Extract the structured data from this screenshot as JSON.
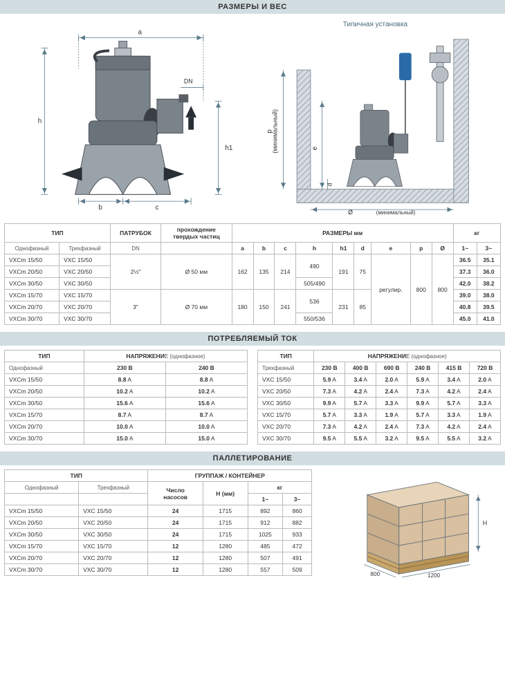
{
  "sections": {
    "dims": "РАЗМЕРЫ И ВЕС",
    "current": "ПОТРЕБЛЯЕМЫЙ ТОК",
    "pallet": "ПАЛЛЕТИРОВАНИЕ"
  },
  "install_label": "Типичная установка",
  "dim_labels": {
    "min1": "(минимальный)",
    "min2": "(минимальный)"
  },
  "dl": {
    "a": "a",
    "b": "b",
    "c": "c",
    "h": "h",
    "h1": "h1",
    "DN": "DN",
    "d": "d",
    "e": "e",
    "p": "p",
    "diam": "Ø"
  },
  "colors": {
    "header_bg": "#d2dde2",
    "line": "#5a7a8a",
    "pump_dark": "#4a4f55",
    "pump_mid": "#7a828a",
    "pump_light": "#b8bec4",
    "blue": "#2a6aa8",
    "wall": "#c0c6cc",
    "wall_hatch": "#9aa4ad"
  },
  "table1": {
    "headers": {
      "type": "ТИП",
      "single": "Однофазный",
      "three": "Трехфазный",
      "dn_head": "ПАТРУБОК",
      "dn_sub": "DN",
      "particles1": "прохождение",
      "particles2": "твердых частиц",
      "dims": "РАЗМЕРЫ  мм",
      "kg": "кг",
      "c_a": "a",
      "c_b": "b",
      "c_c": "c",
      "c_h": "h",
      "c_h1": "h1",
      "c_d": "d",
      "c_e": "e",
      "c_p": "p",
      "c_diam": "Ø",
      "c_1": "1~",
      "c_3": "3~"
    },
    "merged": {
      "dn1": "2½\"",
      "dn2": "3\"",
      "part1": "Ø 50 мм",
      "part2": "Ø 70 мм",
      "a1": "162",
      "b1": "135",
      "c1": "214",
      "a2": "180",
      "b2": "150",
      "c2": "241",
      "h1": "490",
      "h2": "505/490",
      "h3": "536",
      "h4": "550/536",
      "h1_1": "191",
      "h1_2": "231",
      "d1": "75",
      "d2": "85",
      "e": "регулир.",
      "p": "800",
      "diam": "800"
    },
    "rows": [
      {
        "m": "VXCm 15/50",
        "t": "VXC 15/50",
        "kg1": "36.5",
        "kg3": "35.1"
      },
      {
        "m": "VXCm 20/50",
        "t": "VXC 20/50",
        "kg1": "37.3",
        "kg3": "36.0"
      },
      {
        "m": "VXCm 30/50",
        "t": "VXC 30/50",
        "kg1": "42.0",
        "kg3": "38.2"
      },
      {
        "m": "VXCm 15/70",
        "t": "VXC 15/70",
        "kg1": "39.0",
        "kg3": "38.0"
      },
      {
        "m": "VXCm 20/70",
        "t": "VXC 20/70",
        "kg1": "40.8",
        "kg3": "39.5"
      },
      {
        "m": "VXCm 30/70",
        "t": "VXC 30/70",
        "kg1": "45.0",
        "kg3": "41.0"
      }
    ]
  },
  "table2a": {
    "headers": {
      "type": "ТИП",
      "volt": "НАПРЯЖЕНИ",
      "volt_suf": "Е (однофазное)",
      "single": "Однофазный",
      "v230": "230 В",
      "v240": "240 В"
    },
    "rows": [
      {
        "m": "VXCm 15/50",
        "v230": "8.8",
        "v240": "8.8"
      },
      {
        "m": "VXCm 20/50",
        "v230": "10.2",
        "v240": "10.2"
      },
      {
        "m": "VXCm 30/50",
        "v230": "15.6",
        "v240": "15.6"
      },
      {
        "m": "VXCm 15/70",
        "v230": "8.7",
        "v240": "8.7"
      },
      {
        "m": "VXCm 20/70",
        "v230": "10.0",
        "v240": "10.0"
      },
      {
        "m": "VXCm 30/70",
        "v230": "15.0",
        "v240": "15.0"
      }
    ]
  },
  "table2b": {
    "headers": {
      "type": "ТИП",
      "volt": "НАПРЯЖЕНИ",
      "volt_suf": "Е (однофазное)",
      "three": "Трехфазный",
      "v230": "230 В",
      "v400": "400 В",
      "v690": "690 В",
      "v240": "240 В",
      "v415": "415 В",
      "v720": "720 В"
    },
    "rows": [
      {
        "m": "VXC 15/50",
        "v": [
          "5.9",
          "3.4",
          "2.0",
          "5.9",
          "3.4",
          "2.0"
        ]
      },
      {
        "m": "VXC 20/50",
        "v": [
          "7.3",
          "4.2",
          "2.4",
          "7.3",
          "4.2",
          "2.4"
        ]
      },
      {
        "m": "VXC 30/50",
        "v": [
          "9.9",
          "5.7",
          "3.3",
          "9.9",
          "5.7",
          "3.3"
        ]
      },
      {
        "m": "VXC 15/70",
        "v": [
          "5.7",
          "3.3",
          "1.9",
          "5.7",
          "3.3",
          "1.9"
        ]
      },
      {
        "m": "VXC 20/70",
        "v": [
          "7.3",
          "4.2",
          "2.4",
          "7.3",
          "4.2",
          "2.4"
        ]
      },
      {
        "m": "VXC 30/70",
        "v": [
          "9.5",
          "5.5",
          "3.2",
          "9.5",
          "5.5",
          "3.2"
        ]
      }
    ]
  },
  "table3": {
    "headers": {
      "type": "ТИП",
      "single": "Однофазный",
      "three": "Трехфазный",
      "group": "ГРУППАЖ / КОНТЕЙНЕР",
      "npumps1": "Число",
      "npumps2": "насосов",
      "h": "H (мм)",
      "kg": "кг",
      "c_1": "1~",
      "c_3": "3~"
    },
    "rows": [
      {
        "m": "VXCm 15/50",
        "t": "VXC 15/50",
        "n": "24",
        "h": "1715",
        "kg1": "892",
        "kg3": "860"
      },
      {
        "m": "VXCm 20/50",
        "t": "VXC 20/50",
        "n": "24",
        "h": "1715",
        "kg1": "912",
        "kg3": "882"
      },
      {
        "m": "VXCm 30/50",
        "t": "VXC 30/50",
        "n": "24",
        "h": "1715",
        "kg1": "1025",
        "kg3": "933"
      },
      {
        "m": "VXCm 15/70",
        "t": "VXC 15/70",
        "n": "12",
        "h": "1280",
        "kg1": "485",
        "kg3": "472"
      },
      {
        "m": "VXCm 20/70",
        "t": "VXC 20/70",
        "n": "12",
        "h": "1280",
        "kg1": "507",
        "kg3": "491"
      },
      {
        "m": "VXCm 30/70",
        "t": "VXC 30/70",
        "n": "12",
        "h": "1280",
        "kg1": "557",
        "kg3": "509"
      }
    ]
  },
  "pallet_dims": {
    "w": "1200",
    "d": "800",
    "h": "H"
  },
  "unit_A": "A"
}
